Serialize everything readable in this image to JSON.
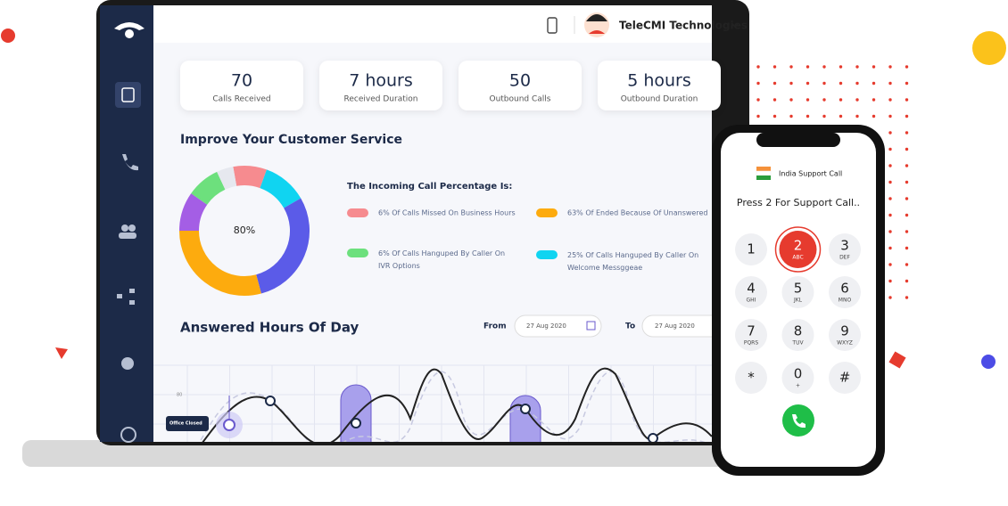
{
  "header": {
    "user": "TeleCMI Technologies"
  },
  "stats": [
    {
      "value": "70",
      "label": "Calls Received"
    },
    {
      "value": "7 hours",
      "label": "Received Duration"
    },
    {
      "value": "50",
      "label": "Outbound Calls"
    },
    {
      "value": "5 hours",
      "label": "Outbound Duration"
    }
  ],
  "service": {
    "title": "Improve Your Customer Service",
    "center": "80%",
    "legend_title": "The Incoming Call Percentage Is:",
    "legend": [
      {
        "text": "6% Of Calls Missed On Business Hours",
        "color": "#f68b8f"
      },
      {
        "text": "63% Of Ended Because Of Unanswered",
        "color": "#fdab0e"
      },
      {
        "text": "6% Of Calls Hanguped By Caller On IVR Options",
        "color": "#6de07d"
      },
      {
        "text": "25% Of Calls Hanguped By Caller On Welcome Messggeae",
        "color": "#10d4f1"
      }
    ]
  },
  "hours": {
    "title": "Answered Hours Of Day",
    "from_label": "From",
    "from_date": "27 Aug 2020",
    "to_label": "To",
    "to_date": "27 Aug 2020",
    "axis_label": "80",
    "tooltip": "Office Closed"
  },
  "phone": {
    "caller": "India Support Call",
    "prompt": "Press 2 For Support Call..",
    "keys": [
      {
        "digit": "1"
      },
      {
        "digit": "2",
        "letters": "ABC"
      },
      {
        "digit": "3",
        "letters": "DEF"
      },
      {
        "digit": "4",
        "letters": "GHI"
      },
      {
        "digit": "5",
        "letters": "JKL"
      },
      {
        "digit": "6",
        "letters": "MNO"
      },
      {
        "digit": "7",
        "letters": "PQRS"
      },
      {
        "digit": "8",
        "letters": "TUV"
      },
      {
        "digit": "9",
        "letters": "WXYZ"
      },
      {
        "digit": "*"
      },
      {
        "digit": "0",
        "letters": "+"
      },
      {
        "digit": "#"
      }
    ]
  }
}
